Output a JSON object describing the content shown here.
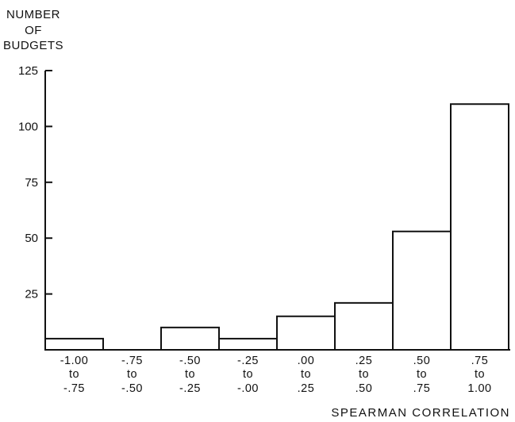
{
  "chart_data": {
    "type": "bar",
    "ylabel_lines": [
      "NUMBER",
      "OF",
      "BUDGETS"
    ],
    "xlabel": "SPEARMAN CORRELATION",
    "ylim": [
      0,
      125
    ],
    "yticks": [
      25,
      50,
      75,
      100,
      125
    ],
    "grid": false,
    "legend": "none",
    "categories": [
      [
        "-1.00",
        "to",
        "-.75"
      ],
      [
        "-.75",
        "to",
        "-.50"
      ],
      [
        "-.50",
        "to",
        "-.25"
      ],
      [
        "-.25",
        "to",
        "-.00"
      ],
      [
        ".00",
        "to",
        ".25"
      ],
      [
        ".25",
        "to",
        ".50"
      ],
      [
        ".50",
        "to",
        ".75"
      ],
      [
        ".75",
        "to",
        "1.00"
      ]
    ],
    "values": [
      5,
      0,
      10,
      5,
      15,
      21,
      53,
      110
    ],
    "bar_fill": "#ffffff",
    "stroke_color": "#111111"
  }
}
